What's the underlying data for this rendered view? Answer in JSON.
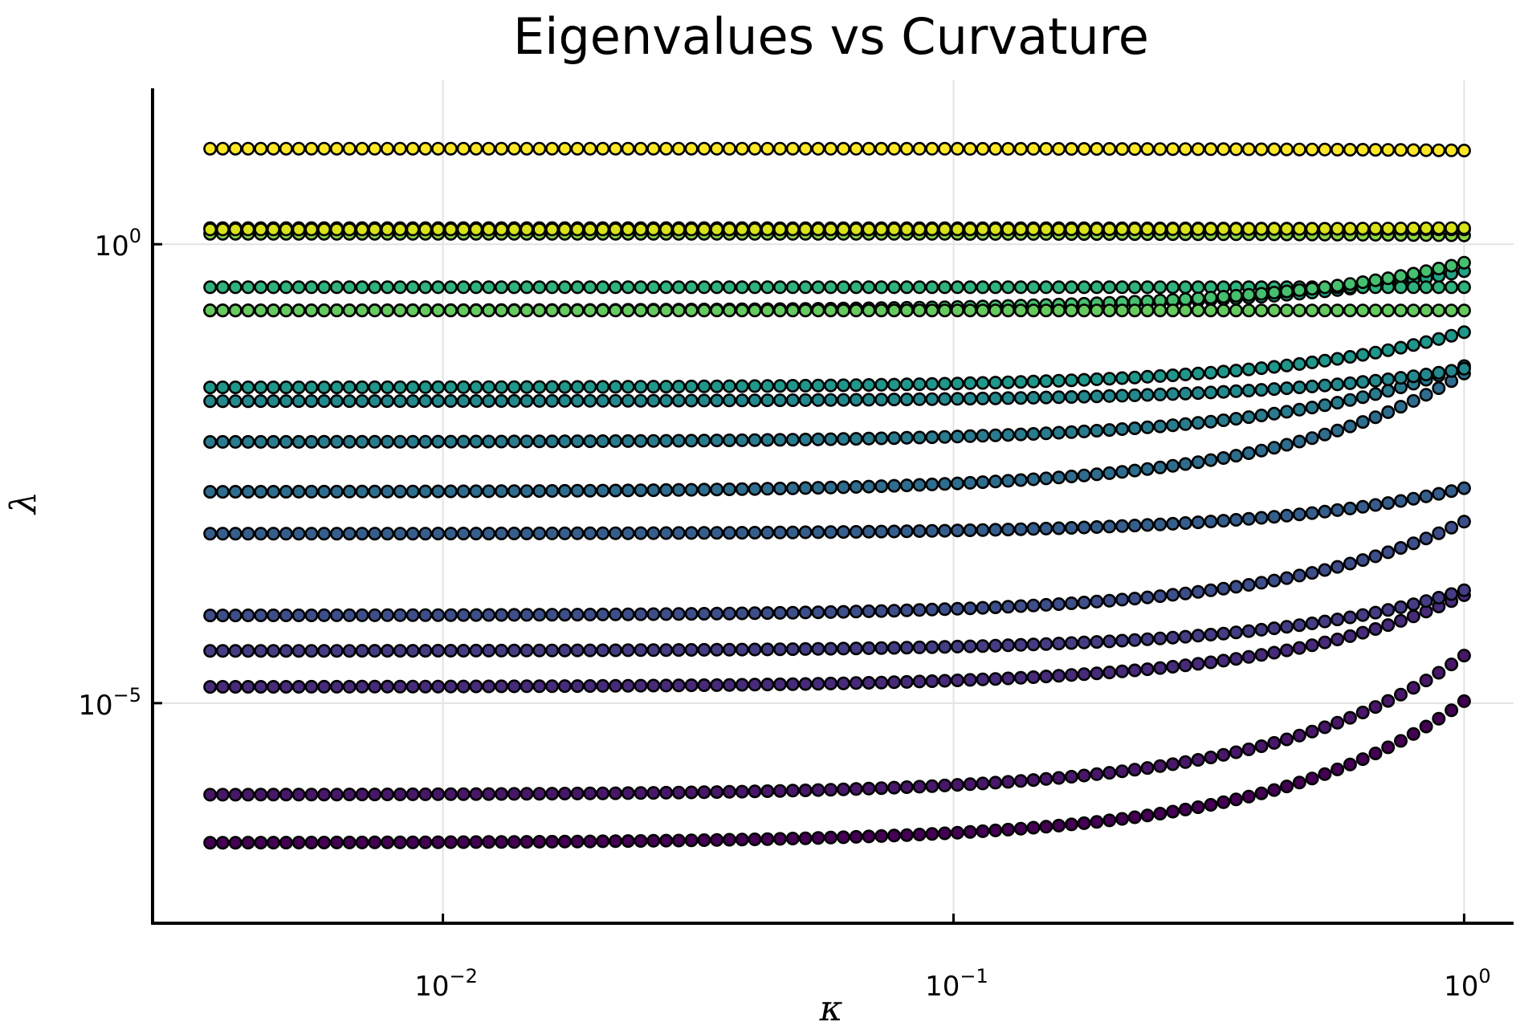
{
  "chart_data": {
    "type": "scatter",
    "title": "Eigenvalues vs Curvature",
    "xlabel": "κ",
    "ylabel": "λ",
    "xscale": "log",
    "yscale": "log",
    "xlim": [
      0.0027,
      1.25
    ],
    "ylim": [
      4e-08,
      50
    ],
    "xticks": [
      {
        "value": 0.01,
        "base": "10",
        "exp": "−2"
      },
      {
        "value": 0.1,
        "base": "10",
        "exp": "−1"
      },
      {
        "value": 1,
        "base": "10",
        "exp": "0"
      }
    ],
    "yticks": [
      {
        "value": 1e-05,
        "base": "10",
        "exp": "−5"
      },
      {
        "value": 1,
        "base": "10",
        "exp": "0"
      }
    ],
    "grid": true,
    "legend": "none",
    "x_range": [
      0.0035,
      1.0
    ],
    "points_per_series": 100,
    "series": [
      {
        "color": "#440154",
        "start": 3e-07,
        "end": 1.05e-05
      },
      {
        "color": "#481769",
        "start": 1e-06,
        "end": 3.3e-05
      },
      {
        "color": "#472a7a",
        "start": 1.5e-05,
        "end": 0.00015
      },
      {
        "color": "#433d84",
        "start": 3.7e-05,
        "end": 0.00017
      },
      {
        "color": "#3d4e8a",
        "start": 9e-05,
        "end": 0.00095
      },
      {
        "color": "#355e8d",
        "start": 0.0007,
        "end": 0.0022
      },
      {
        "color": "#2e6d8e",
        "start": 0.002,
        "end": 0.039
      },
      {
        "color": "#297b8e",
        "start": 0.007,
        "end": 0.047
      },
      {
        "color": "#23898e",
        "start": 0.0195,
        "end": 0.044
      },
      {
        "color": "#1f978b",
        "start": 0.0275,
        "end": 0.11
      },
      {
        "color": "#21a585",
        "start": 0.19,
        "end": 0.51
      },
      {
        "color": "#2eb37c",
        "start": 0.34,
        "end": 0.34
      },
      {
        "color": "#46c06f",
        "start": 0.19,
        "end": 0.63
      },
      {
        "color": "#65cb5e",
        "start": 0.19,
        "end": 0.19
      },
      {
        "color": "#89d548",
        "start": 1.3,
        "end": 1.25
      },
      {
        "color": "#b0dd2f",
        "start": 1.5,
        "end": 1.45
      },
      {
        "color": "#d8e219",
        "start": 1.45,
        "end": 1.5
      },
      {
        "color": "#fde725",
        "start": 11.0,
        "end": 10.5
      }
    ]
  }
}
